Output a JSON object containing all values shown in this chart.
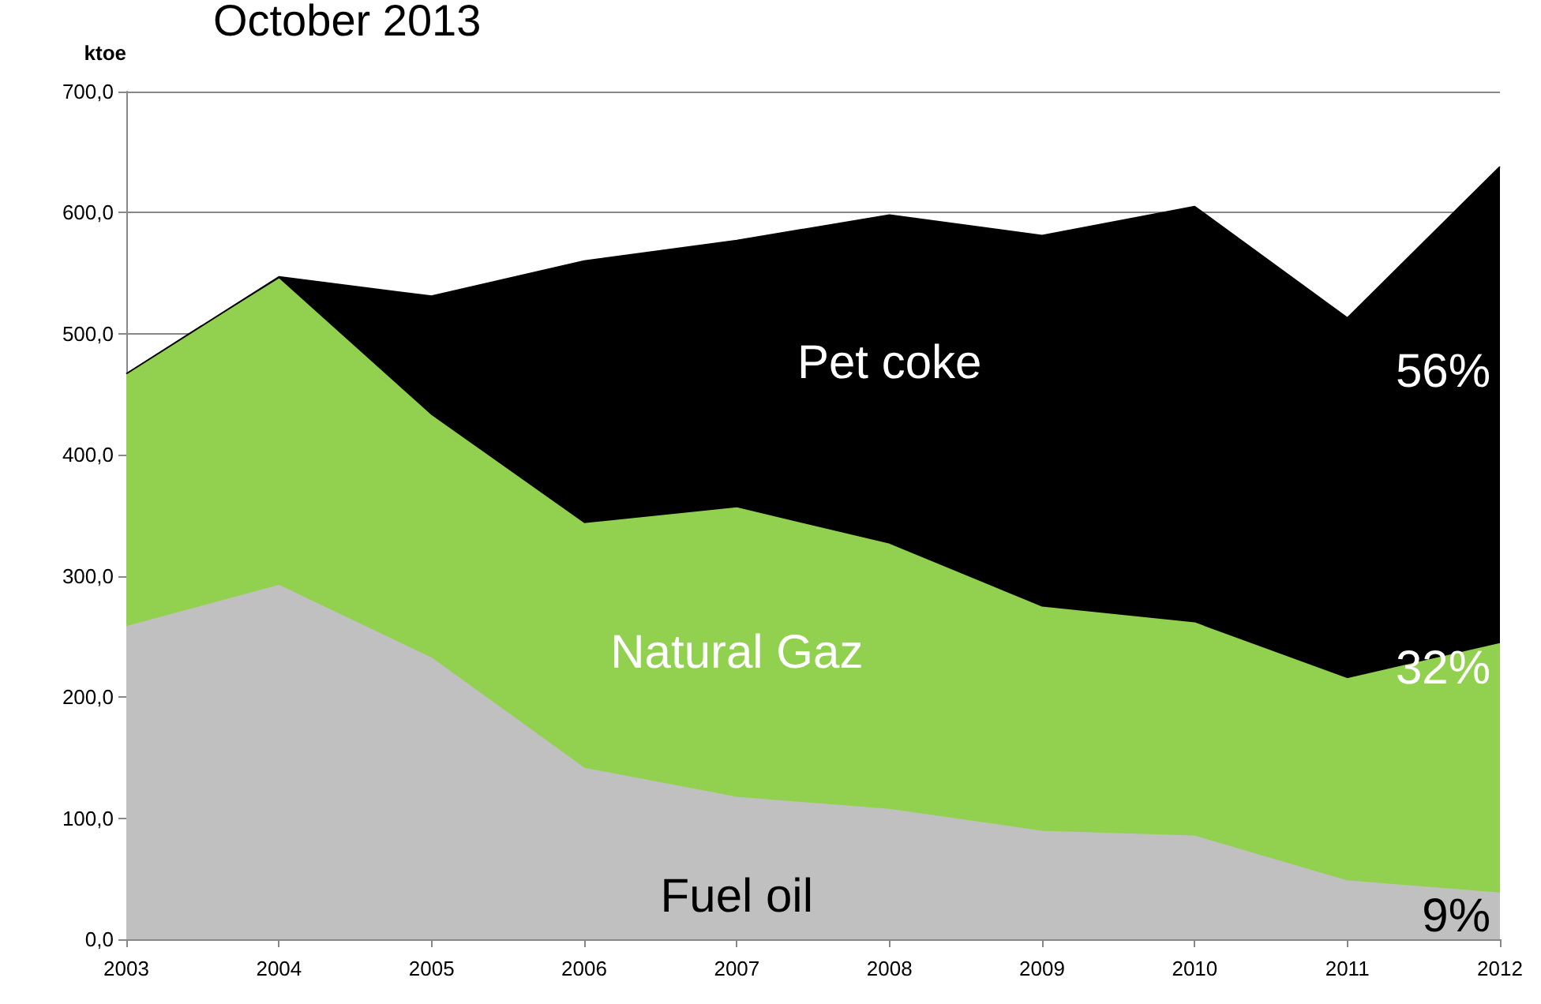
{
  "chart_data": {
    "type": "area",
    "title": "October 2013",
    "ylabel": "ktoe",
    "stacked": true,
    "grid": "y",
    "legend": false,
    "categories": [
      "2003",
      "2004",
      "2005",
      "2006",
      "2007",
      "2008",
      "2009",
      "2010",
      "2011",
      "2012"
    ],
    "series": [
      {
        "name": "Fuel oil",
        "color": "#c0c0c0",
        "values": [
          258,
          292,
          232,
          141,
          117,
          107,
          89,
          85,
          48,
          38
        ]
      },
      {
        "name": "Natural Gaz",
        "color": "#92d050",
        "values": [
          209,
          253,
          200,
          202,
          239,
          219,
          185,
          176,
          167,
          206
        ]
      },
      {
        "name": "Pet coke",
        "color": "#000000",
        "values": [
          0,
          2,
          99,
          217,
          221,
          272,
          307,
          344,
          298,
          394
        ]
      }
    ],
    "ylim": [
      0,
      700
    ],
    "yticks": [
      {
        "value": 0,
        "label": "0,0"
      },
      {
        "value": 100,
        "label": "100,0"
      },
      {
        "value": 200,
        "label": "200,0"
      },
      {
        "value": 300,
        "label": "300,0"
      },
      {
        "value": 400,
        "label": "400,0"
      },
      {
        "value": 500,
        "label": "500,0"
      },
      {
        "value": 600,
        "label": "600,0"
      },
      {
        "value": 700,
        "label": "700,0"
      }
    ],
    "annotations": [
      "9%",
      "32%",
      "56%"
    ]
  }
}
